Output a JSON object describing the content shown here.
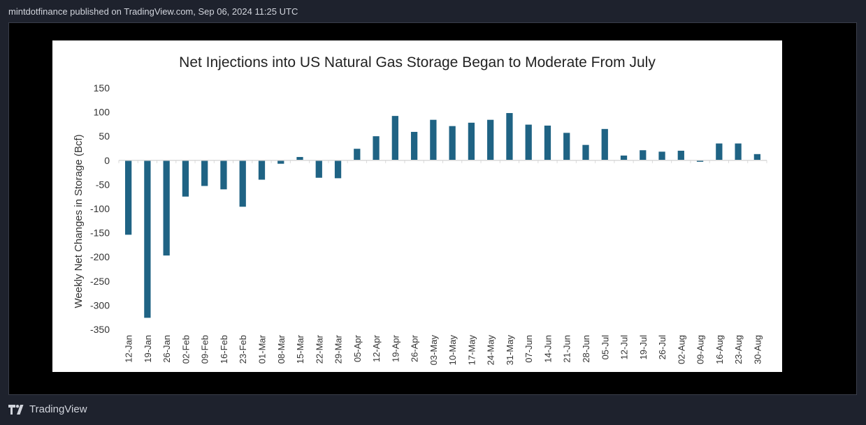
{
  "header": {
    "text": "mintdotfinance published on TradingView.com, Sep 06, 2024 11:25 UTC"
  },
  "footer": {
    "brand": "TradingView",
    "icon": "tradingview-logo-icon"
  },
  "colors": {
    "bar": "#1f6384",
    "axis": "#d9d9d9"
  },
  "chart_data": {
    "type": "bar",
    "title": "Net Injections into US Natural Gas Storage Began to Moderate From July",
    "xlabel": "",
    "ylabel": "Weekly Net Changes in Storage (Bcf)",
    "ylim": [
      -350,
      150
    ],
    "yticks": [
      150,
      100,
      50,
      0,
      -50,
      -100,
      -150,
      -200,
      -250,
      -300,
      -350
    ],
    "categories": [
      "12-Jan",
      "19-Jan",
      "26-Jan",
      "02-Feb",
      "09-Feb",
      "16-Feb",
      "23-Feb",
      "01-Mar",
      "08-Mar",
      "15-Mar",
      "22-Mar",
      "29-Mar",
      "05-Apr",
      "12-Apr",
      "19-Apr",
      "26-Apr",
      "03-May",
      "10-May",
      "17-May",
      "24-May",
      "31-May",
      "07-Jun",
      "14-Jun",
      "21-Jun",
      "28-Jun",
      "05-Jul",
      "12-Jul",
      "19-Jul",
      "26-Jul",
      "02-Aug",
      "09-Aug",
      "16-Aug",
      "23-Aug",
      "30-Aug"
    ],
    "values": [
      -154,
      -326,
      -197,
      -75,
      -53,
      -60,
      -96,
      -40,
      -7,
      7,
      -36,
      -37,
      24,
      50,
      92,
      59,
      84,
      71,
      78,
      84,
      98,
      74,
      72,
      57,
      32,
      65,
      10,
      21,
      18,
      20,
      -3,
      35,
      35,
      13
    ]
  }
}
